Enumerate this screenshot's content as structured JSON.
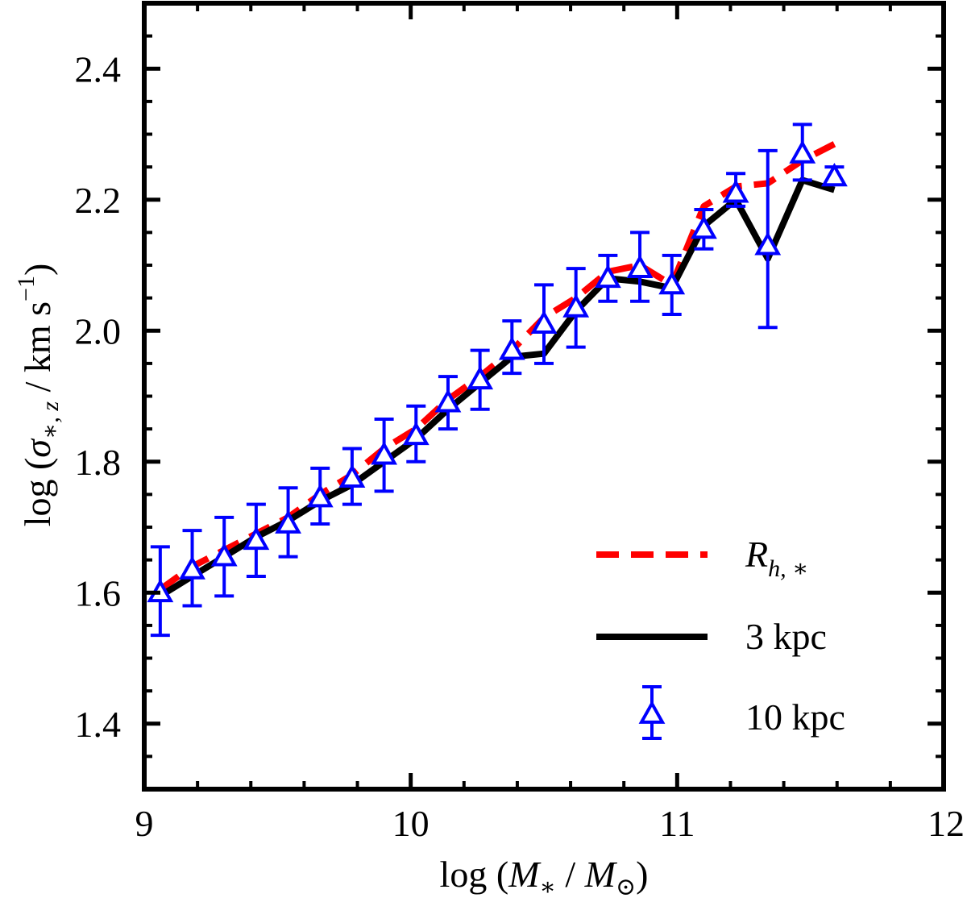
{
  "chart_data": {
    "type": "line",
    "title": "",
    "xlabel": "log (M_* / M_sun)",
    "ylabel": "log (sigma_*,z / km s^-1)",
    "xlim": [
      9,
      12
    ],
    "ylim": [
      1.3,
      2.5
    ],
    "x_ticks": [
      "9",
      "10",
      "11",
      "12"
    ],
    "y_ticks": [
      "1.4",
      "1.6",
      "1.8",
      "2.0",
      "2.2",
      "2.4"
    ],
    "x_ticks_values": [
      9,
      10,
      11,
      12
    ],
    "y_ticks_values": [
      1.4,
      1.6,
      1.8,
      2.0,
      2.2,
      2.4
    ],
    "labels": {
      "xlabel_prefix": "log (",
      "xlabel_main": "M",
      "xlabel_sub": "∗",
      "xlabel_sep": " / ",
      "xlabel_main2": "M",
      "xlabel_sub2": "⊙",
      "xlabel_suffix": ")",
      "ylabel_prefix": "log (",
      "ylabel_sigma": "σ",
      "ylabel_sub": "∗, z",
      "ylabel_unit": " / km s",
      "ylabel_sup": "−1",
      "ylabel_suffix": ")"
    },
    "legend": {
      "position": "bottom-right",
      "rh_main": "R",
      "rh_sub": "h, ∗",
      "three": "3 kpc",
      "ten": "10 kpc"
    },
    "colors": {
      "rh": "#ff0000",
      "three": "#000000",
      "ten": "#0000ff"
    },
    "x": [
      9.06,
      9.18,
      9.3,
      9.42,
      9.54,
      9.66,
      9.78,
      9.9,
      10.02,
      10.14,
      10.26,
      10.38,
      10.5,
      10.62,
      10.74,
      10.86,
      10.98,
      11.1,
      11.22,
      11.34,
      11.47,
      11.59
    ],
    "series": [
      {
        "name": "R_h,*",
        "style": "dashed",
        "values": [
          1.605,
          1.64,
          1.665,
          1.69,
          1.715,
          1.75,
          1.78,
          1.82,
          1.85,
          1.895,
          1.93,
          1.97,
          2.02,
          2.05,
          2.09,
          2.1,
          2.07,
          2.19,
          2.22,
          2.225,
          2.26,
          2.285
        ]
      },
      {
        "name": "3 kpc",
        "style": "solid",
        "values": [
          1.595,
          1.625,
          1.655,
          1.685,
          1.71,
          1.74,
          1.765,
          1.8,
          1.835,
          1.88,
          1.92,
          1.96,
          1.965,
          2.03,
          2.08,
          2.075,
          2.065,
          2.16,
          2.2,
          2.11,
          2.23,
          2.215
        ]
      },
      {
        "name": "10 kpc",
        "style": "markers",
        "values": [
          1.6,
          1.635,
          1.655,
          1.68,
          1.705,
          1.745,
          1.775,
          1.81,
          1.84,
          1.89,
          1.925,
          1.97,
          2.01,
          2.035,
          2.08,
          2.095,
          2.07,
          2.155,
          2.21,
          2.13,
          2.27,
          2.235
        ],
        "err_low": [
          0.065,
          0.055,
          0.06,
          0.055,
          0.05,
          0.04,
          0.04,
          0.055,
          0.04,
          0.04,
          0.045,
          0.035,
          0.06,
          0.06,
          0.035,
          0.05,
          0.045,
          0.03,
          0.02,
          0.125,
          0.04,
          0.01
        ],
        "err_high": [
          0.07,
          0.06,
          0.06,
          0.055,
          0.055,
          0.045,
          0.045,
          0.055,
          0.045,
          0.04,
          0.045,
          0.045,
          0.06,
          0.06,
          0.035,
          0.055,
          0.045,
          0.03,
          0.03,
          0.145,
          0.045,
          0.015
        ]
      }
    ]
  }
}
